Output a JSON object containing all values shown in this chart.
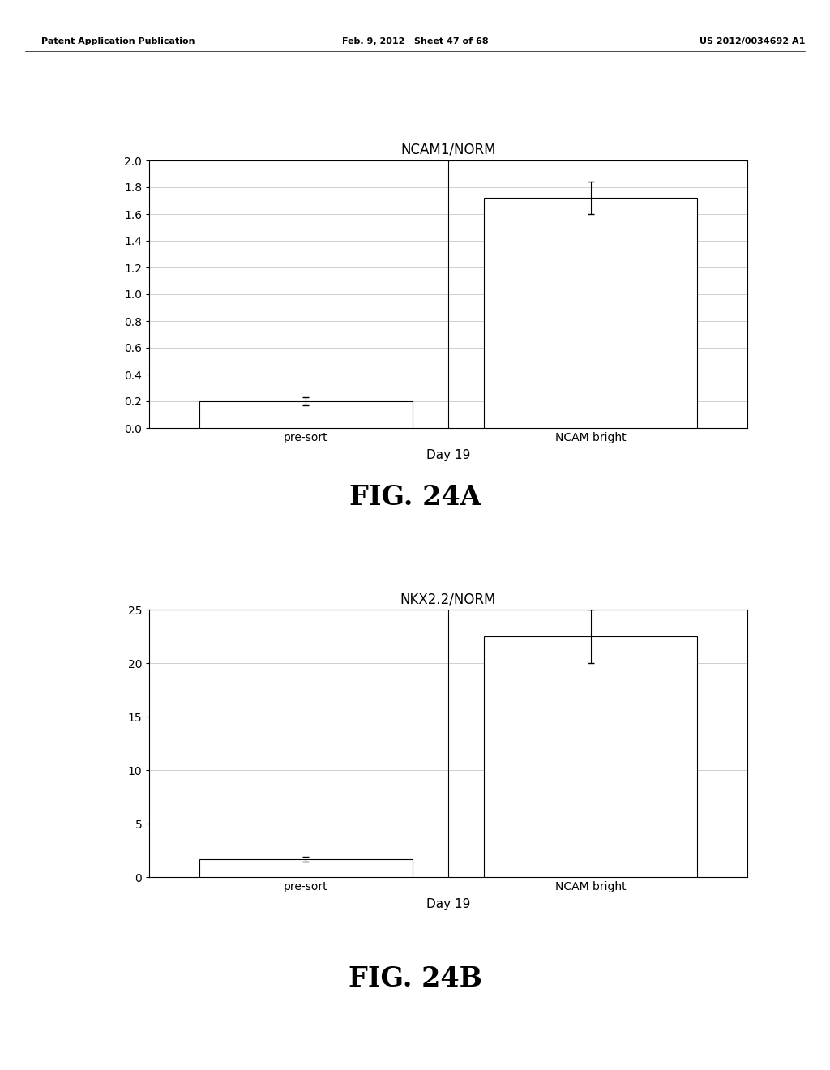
{
  "page_header": {
    "left": "Patent Application Publication",
    "center": "Feb. 9, 2012   Sheet 47 of 68",
    "right": "US 2012/0034692 A1"
  },
  "chart_A": {
    "title": "NCAM1/NORM",
    "categories": [
      "pre-sort",
      "NCAM bright"
    ],
    "values": [
      0.2,
      1.72
    ],
    "errors": [
      0.03,
      0.12
    ],
    "ylim": [
      0,
      2
    ],
    "yticks": [
      0,
      0.2,
      0.4,
      0.6,
      0.8,
      1.0,
      1.2,
      1.4,
      1.6,
      1.8,
      2.0
    ],
    "xlabel": "Day 19",
    "bar_color": "#ffffff",
    "bar_edgecolor": "#000000",
    "grid_color": "#bbbbbb",
    "fig_label": "FIG. 24A"
  },
  "chart_B": {
    "title": "NKX2.2/NORM",
    "categories": [
      "pre-sort",
      "NCAM bright"
    ],
    "values": [
      1.7,
      22.5
    ],
    "errors": [
      0.2,
      2.5
    ],
    "ylim": [
      0,
      25
    ],
    "yticks": [
      0,
      5,
      10,
      15,
      20,
      25
    ],
    "xlabel": "Day 19",
    "bar_color": "#ffffff",
    "bar_edgecolor": "#000000",
    "grid_color": "#bbbbbb",
    "fig_label": "FIG. 24B"
  },
  "background_color": "#ffffff",
  "bar_width": 0.75,
  "title_fontsize": 12,
  "tick_fontsize": 10,
  "label_fontsize": 11,
  "figlabel_fontsize": 24,
  "header_fontsize": 8
}
